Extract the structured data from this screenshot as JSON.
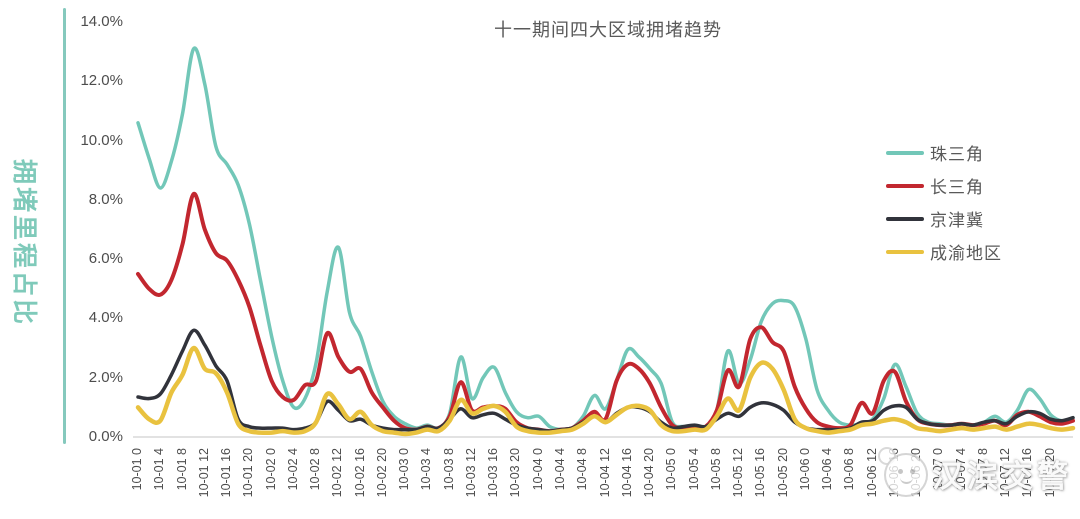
{
  "title": "十一期间四大区域拥堵趋势",
  "y_axis": {
    "label": "拥堵里程占比",
    "ticks": [
      "0.0%",
      "2.0%",
      "4.0%",
      "6.0%",
      "8.0%",
      "10.0%",
      "12.0%",
      "14.0%"
    ]
  },
  "watermark": {
    "text": "汉滨交警",
    "icon": "police-mascot-badge-icon"
  },
  "colors": {
    "axis_line": "#85c9bd",
    "baseline": "#d9d9d9",
    "tick_text": "#4d4d4d",
    "title_text": "#595959",
    "y_axis_title_text": "#7fcaba"
  },
  "chart_data": {
    "type": "line",
    "title": "十一期间四大区域拥堵趋势",
    "xlabel": "",
    "ylabel": "拥堵里程占比",
    "ylim": [
      0,
      14
    ],
    "y_tick_step_percent": 2,
    "grid": false,
    "legend_position": "right",
    "x_unit": "month-day hour",
    "x_range_hours": [
      0,
      168
    ],
    "sample_interval_hours": 2,
    "x_tick_labels": [
      "10-01 0",
      "10-01 4",
      "10-01 8",
      "10-01 12",
      "10-01 16",
      "10-01 20",
      "10-02 0",
      "10-02 4",
      "10-02 8",
      "10-02 12",
      "10-02 16",
      "10-02 20",
      "10-03 0",
      "10-03 4",
      "10-03 8",
      "10-03 12",
      "10-03 16",
      "10-03 20",
      "10-04 0",
      "10-04 4",
      "10-04 8",
      "10-04 12",
      "10-04 16",
      "10-04 20",
      "10-05 0",
      "10-05 4",
      "10-05 8",
      "10-05 12",
      "10-05 16",
      "10-05 20",
      "10-06 0",
      "10-06 4",
      "10-06 8",
      "10-06 12",
      "10-06 16",
      "10-06 20",
      "10-07 0",
      "10-07 4",
      "10-07 8",
      "10-07 12",
      "10-07 16",
      "10-07 20"
    ],
    "series": [
      {
        "name": "珠三角",
        "color": "#72c7b8",
        "values": [
          10.6,
          9.4,
          8.4,
          9.3,
          10.9,
          13.1,
          11.9,
          9.8,
          9.2,
          8.5,
          7.2,
          5.3,
          3.4,
          1.9,
          1.0,
          1.3,
          2.5,
          4.9,
          6.4,
          4.2,
          3.4,
          2.2,
          1.2,
          0.7,
          0.45,
          0.3,
          0.4,
          0.3,
          0.8,
          2.7,
          1.3,
          2.0,
          2.35,
          1.5,
          0.85,
          0.65,
          0.7,
          0.35,
          0.25,
          0.3,
          0.7,
          1.4,
          0.95,
          1.9,
          2.95,
          2.7,
          2.3,
          1.8,
          0.5,
          0.35,
          0.3,
          0.35,
          0.9,
          2.9,
          1.8,
          2.6,
          3.9,
          4.5,
          4.6,
          4.4,
          3.3,
          1.6,
          0.9,
          0.5,
          0.4,
          0.45,
          0.6,
          1.3,
          2.45,
          1.7,
          0.8,
          0.5,
          0.45,
          0.4,
          0.45,
          0.4,
          0.5,
          0.7,
          0.5,
          0.9,
          1.6,
          1.3,
          0.75,
          0.55,
          0.65
        ]
      },
      {
        "name": "长三角",
        "color": "#c2272f",
        "values": [
          5.5,
          5.0,
          4.8,
          5.3,
          6.5,
          8.2,
          7.0,
          6.2,
          5.95,
          5.3,
          4.4,
          3.1,
          1.9,
          1.35,
          1.25,
          1.75,
          1.9,
          3.5,
          2.7,
          2.2,
          2.3,
          1.5,
          1.0,
          0.55,
          0.3,
          0.25,
          0.35,
          0.3,
          0.7,
          1.85,
          0.9,
          1.0,
          1.05,
          0.95,
          0.5,
          0.3,
          0.25,
          0.2,
          0.25,
          0.3,
          0.55,
          0.85,
          0.6,
          1.9,
          2.45,
          2.3,
          1.8,
          1.0,
          0.4,
          0.3,
          0.3,
          0.35,
          0.9,
          2.25,
          1.7,
          3.3,
          3.7,
          3.2,
          2.9,
          1.7,
          0.95,
          0.5,
          0.35,
          0.3,
          0.4,
          1.15,
          0.8,
          1.9,
          2.2,
          1.2,
          0.6,
          0.45,
          0.4,
          0.4,
          0.45,
          0.4,
          0.45,
          0.55,
          0.4,
          0.75,
          0.85,
          0.7,
          0.5,
          0.45,
          0.55
        ]
      },
      {
        "name": "京津冀",
        "color": "#31333b",
        "values": [
          1.35,
          1.3,
          1.45,
          2.1,
          2.9,
          3.6,
          3.1,
          2.4,
          1.9,
          0.6,
          0.35,
          0.3,
          0.3,
          0.3,
          0.25,
          0.3,
          0.5,
          1.2,
          0.9,
          0.55,
          0.6,
          0.4,
          0.3,
          0.25,
          0.25,
          0.25,
          0.35,
          0.3,
          0.6,
          0.95,
          0.65,
          0.75,
          0.8,
          0.6,
          0.4,
          0.3,
          0.25,
          0.2,
          0.25,
          0.3,
          0.5,
          0.7,
          0.5,
          0.8,
          1.0,
          1.0,
          0.85,
          0.5,
          0.3,
          0.35,
          0.4,
          0.35,
          0.6,
          0.8,
          0.7,
          1.0,
          1.15,
          1.1,
          0.9,
          0.5,
          0.3,
          0.25,
          0.25,
          0.25,
          0.3,
          0.5,
          0.55,
          0.9,
          1.05,
          1.0,
          0.6,
          0.45,
          0.4,
          0.4,
          0.45,
          0.4,
          0.5,
          0.55,
          0.45,
          0.7,
          0.85,
          0.8,
          0.6,
          0.55,
          0.65
        ]
      },
      {
        "name": "成渝地区",
        "color": "#e9c23f",
        "values": [
          1.0,
          0.6,
          0.55,
          1.5,
          2.1,
          3.0,
          2.3,
          2.15,
          1.5,
          0.45,
          0.2,
          0.15,
          0.15,
          0.2,
          0.15,
          0.2,
          0.5,
          1.45,
          1.1,
          0.6,
          0.85,
          0.4,
          0.2,
          0.15,
          0.1,
          0.15,
          0.25,
          0.2,
          0.55,
          1.25,
          0.8,
          0.95,
          1.05,
          0.85,
          0.35,
          0.2,
          0.15,
          0.15,
          0.2,
          0.25,
          0.45,
          0.7,
          0.5,
          0.75,
          1.0,
          1.05,
          0.9,
          0.4,
          0.2,
          0.2,
          0.25,
          0.25,
          0.7,
          1.3,
          0.9,
          2.0,
          2.5,
          2.3,
          1.6,
          0.6,
          0.3,
          0.2,
          0.15,
          0.2,
          0.25,
          0.4,
          0.45,
          0.55,
          0.6,
          0.5,
          0.3,
          0.25,
          0.2,
          0.25,
          0.3,
          0.25,
          0.3,
          0.35,
          0.25,
          0.35,
          0.45,
          0.4,
          0.3,
          0.25,
          0.3
        ]
      }
    ]
  }
}
